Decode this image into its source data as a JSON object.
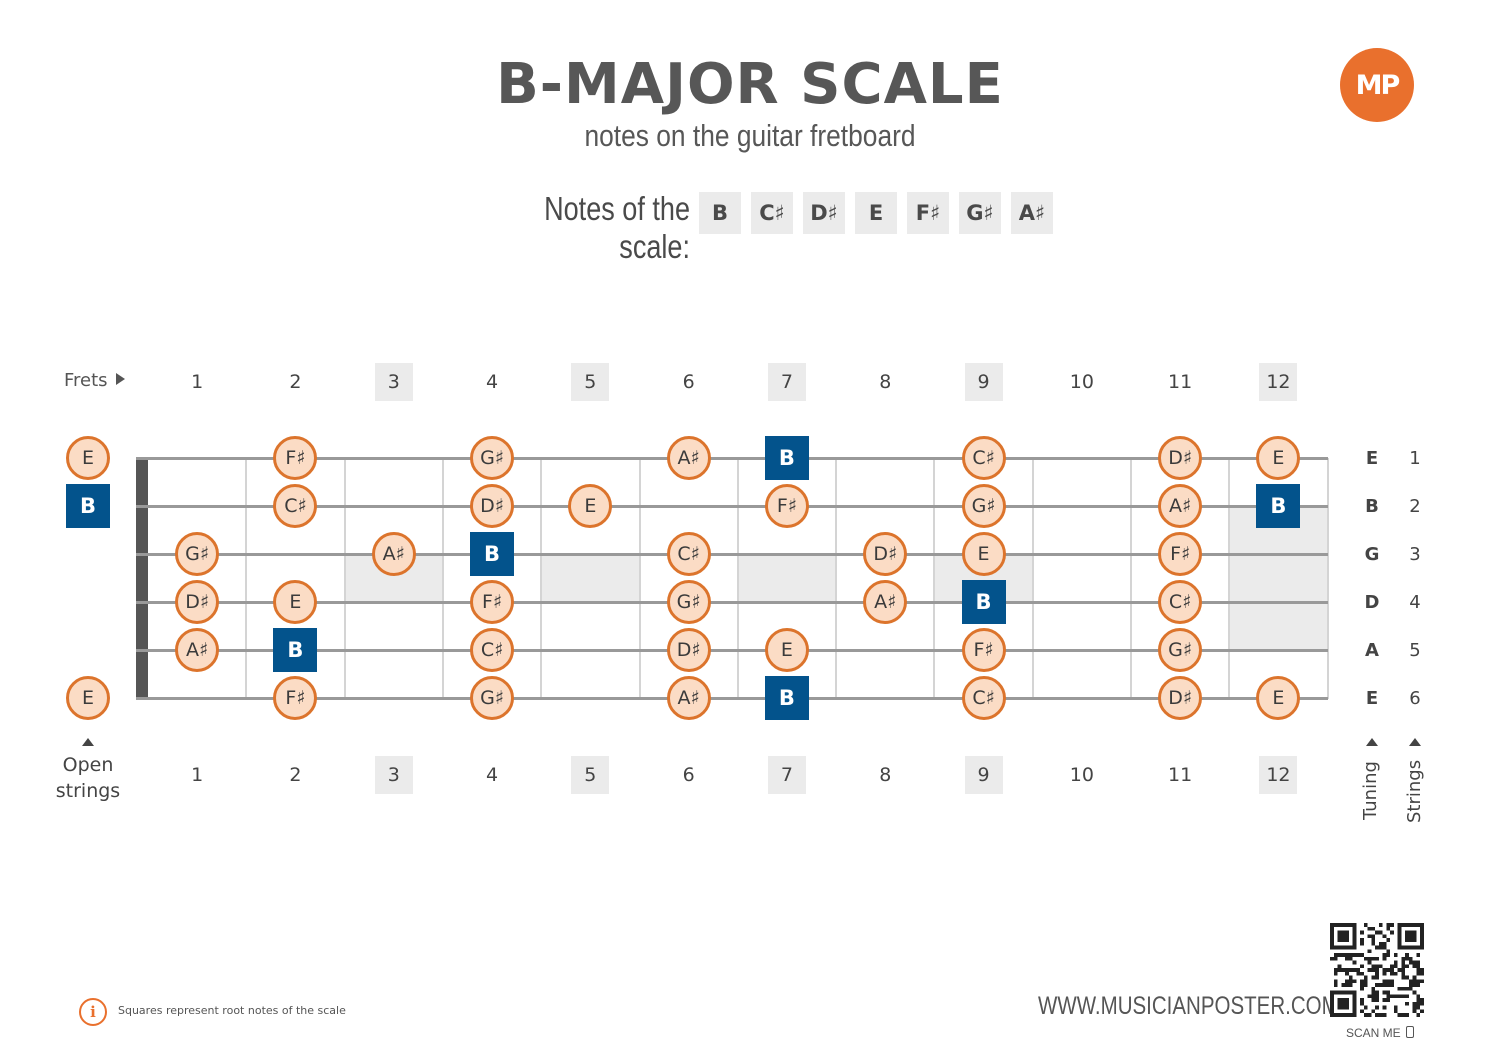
{
  "header": {
    "title": "B-MAJOR SCALE",
    "subtitle": "notes on the guitar fretboard",
    "logo": "MP"
  },
  "scale": {
    "label": "Notes of the scale:",
    "notes": [
      "B",
      "C♯",
      "D♯",
      "E",
      "F♯",
      "G♯",
      "A♯"
    ]
  },
  "frets": {
    "row_label": "Frets",
    "numbers": [
      "1",
      "2",
      "3",
      "4",
      "5",
      "6",
      "7",
      "8",
      "9",
      "10",
      "11",
      "12"
    ],
    "marked": [
      3,
      5,
      7,
      9,
      12
    ]
  },
  "strings": [
    {
      "number": "1",
      "tuning": "E",
      "notes": [
        [
          0,
          "E",
          false
        ],
        [
          2,
          "F♯",
          false
        ],
        [
          4,
          "G♯",
          false
        ],
        [
          6,
          "A♯",
          false
        ],
        [
          7,
          "B",
          true
        ],
        [
          9,
          "C♯",
          false
        ],
        [
          11,
          "D♯",
          false
        ],
        [
          12,
          "E",
          false
        ]
      ]
    },
    {
      "number": "2",
      "tuning": "B",
      "notes": [
        [
          0,
          "B",
          true
        ],
        [
          2,
          "C♯",
          false
        ],
        [
          4,
          "D♯",
          false
        ],
        [
          5,
          "E",
          false
        ],
        [
          7,
          "F♯",
          false
        ],
        [
          9,
          "G♯",
          false
        ],
        [
          11,
          "A♯",
          false
        ],
        [
          12,
          "B",
          true
        ]
      ]
    },
    {
      "number": "3",
      "tuning": "G",
      "notes": [
        [
          1,
          "G♯",
          false
        ],
        [
          3,
          "A♯",
          false
        ],
        [
          4,
          "B",
          true
        ],
        [
          6,
          "C♯",
          false
        ],
        [
          8,
          "D♯",
          false
        ],
        [
          9,
          "E",
          false
        ],
        [
          11,
          "F♯",
          false
        ]
      ]
    },
    {
      "number": "4",
      "tuning": "D",
      "notes": [
        [
          1,
          "D♯",
          false
        ],
        [
          2,
          "E",
          false
        ],
        [
          4,
          "F♯",
          false
        ],
        [
          6,
          "G♯",
          false
        ],
        [
          8,
          "A♯",
          false
        ],
        [
          9,
          "B",
          true
        ],
        [
          11,
          "C♯",
          false
        ]
      ]
    },
    {
      "number": "5",
      "tuning": "A",
      "notes": [
        [
          1,
          "A♯",
          false
        ],
        [
          2,
          "B",
          true
        ],
        [
          4,
          "C♯",
          false
        ],
        [
          6,
          "D♯",
          false
        ],
        [
          7,
          "E",
          false
        ],
        [
          9,
          "F♯",
          false
        ],
        [
          11,
          "G♯",
          false
        ]
      ]
    },
    {
      "number": "6",
      "tuning": "E",
      "notes": [
        [
          0,
          "E",
          false
        ],
        [
          2,
          "F♯",
          false
        ],
        [
          4,
          "G♯",
          false
        ],
        [
          6,
          "A♯",
          false
        ],
        [
          7,
          "B",
          true
        ],
        [
          9,
          "C♯",
          false
        ],
        [
          11,
          "D♯",
          false
        ],
        [
          12,
          "E",
          false
        ]
      ]
    }
  ],
  "labels": {
    "open_line1": "Open",
    "open_line2": "strings",
    "tuning": "Tuning",
    "strings": "Strings"
  },
  "footer": {
    "info_icon": "info-icon",
    "info_text": "Squares represent root notes of the scale",
    "website": "WWW.MUSICIANPOSTER.COM",
    "scan": "SCAN ME"
  },
  "colors": {
    "root_fill": "#03538c",
    "note_fill": "#fbdcc5",
    "note_border": "#dc742c",
    "accent": "#e9702d"
  }
}
